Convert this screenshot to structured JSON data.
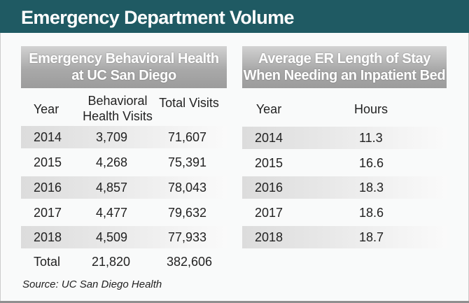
{
  "title": "Emergency Department Volume",
  "left_table": {
    "header_line1": "Emergency Behavioral Health",
    "header_line2": "at UC San Diego",
    "col_year": "Year",
    "col_bh_line1": "Behavioral",
    "col_bh_line2": "Health Visits",
    "col_total": "Total Visits",
    "rows": [
      {
        "year": "2014",
        "bh": "3,709",
        "total": "71,607"
      },
      {
        "year": "2015",
        "bh": "4,268",
        "total": "75,391"
      },
      {
        "year": "2016",
        "bh": "4,857",
        "total": "78,043"
      },
      {
        "year": "2017",
        "bh": "4,477",
        "total": "79,632"
      },
      {
        "year": "2018",
        "bh": "4,509",
        "total": "77,933"
      }
    ],
    "total_row": {
      "label": "Total",
      "bh": "21,820",
      "total": "382,606"
    }
  },
  "right_table": {
    "header_line1": "Average ER Length of Stay",
    "header_line2": "When Needing an Inpatient Bed",
    "col_year": "Year",
    "col_hours": "Hours",
    "rows": [
      {
        "year": "2014",
        "hours": "11.3"
      },
      {
        "year": "2015",
        "hours": "16.6"
      },
      {
        "year": "2016",
        "hours": "18.3"
      },
      {
        "year": "2017",
        "hours": "18.6"
      },
      {
        "year": "2018",
        "hours": "18.7"
      }
    ]
  },
  "source": "Source: UC San Diego Health",
  "colors": {
    "title_bar": "#1f5a63",
    "header_gray": "#a9a9a9"
  }
}
